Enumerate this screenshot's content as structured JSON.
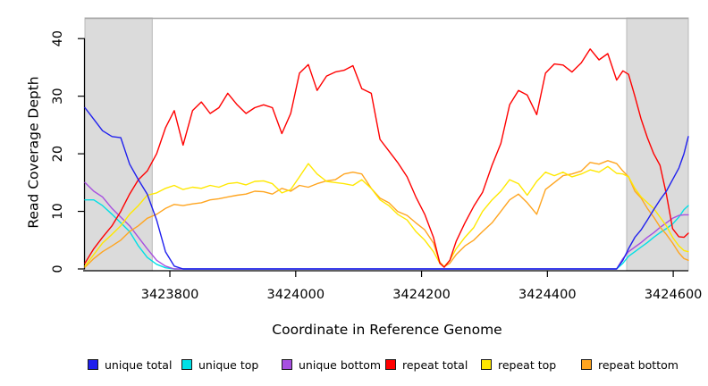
{
  "chart_data": {
    "type": "line",
    "title": "",
    "xlabel": "Coordinate in Reference Genome",
    "ylabel": "Read Coverage Depth",
    "xlim": [
      3423665,
      3424624
    ],
    "ylim": [
      0,
      43.6
    ],
    "xticks": [
      {
        "value": 3423800,
        "label": "3423800"
      },
      {
        "value": 3424000,
        "label": "3424000"
      },
      {
        "value": 3424200,
        "label": "3424200"
      },
      {
        "value": 3424400,
        "label": "3424400"
      },
      {
        "value": 3424600,
        "label": "3424600"
      }
    ],
    "yticks": [
      {
        "value": 0,
        "label": "0"
      },
      {
        "value": 10,
        "label": "10"
      },
      {
        "value": 20,
        "label": "20"
      },
      {
        "value": 30,
        "label": "30"
      },
      {
        "value": 40,
        "label": "40"
      }
    ],
    "grid": false,
    "legend_position": "bottom",
    "shade_fill": "#dbdbdb",
    "shade_border": "#b9b9b9",
    "top_rule_color": "#a6a6a6",
    "axis_color": "#000000",
    "shaded_regions": [
      {
        "x0": 3423665,
        "x1": 3423772
      },
      {
        "x0": 3424526,
        "x1": 3424624
      }
    ],
    "x": [
      3423665,
      3423679,
      3423693,
      3423708,
      3423722,
      3423736,
      3423750,
      3423764,
      3423779,
      3423793,
      3423807,
      3423821,
      3423836,
      3423850,
      3423864,
      3423878,
      3423892,
      3423907,
      3423921,
      3423935,
      3423949,
      3423963,
      3423978,
      3423992,
      3424006,
      3424020,
      3424034,
      3424049,
      3424063,
      3424077,
      3424091,
      3424105,
      3424120,
      3424134,
      3424148,
      3424162,
      3424177,
      3424191,
      3424205,
      3424219,
      3424229,
      3424236,
      3424245,
      3424255,
      3424269,
      3424283,
      3424297,
      3424312,
      3424326,
      3424340,
      3424354,
      3424368,
      3424383,
      3424397,
      3424411,
      3424425,
      3424439,
      3424454,
      3424468,
      3424482,
      3424496,
      3424510,
      3424520,
      3424529,
      3424539,
      3424549,
      3424559,
      3424569,
      3424579,
      3424589,
      3424599,
      3424609,
      3424617,
      3424624
    ],
    "series": [
      {
        "name": "unique top",
        "color": "#00e0e6",
        "values": [
          12,
          12,
          11,
          9.5,
          8,
          6.5,
          4,
          2,
          0.8,
          0.2,
          0,
          0,
          0,
          0,
          0,
          0,
          0,
          0,
          0,
          0,
          0,
          0,
          0,
          0,
          0,
          0,
          0,
          0,
          0,
          0,
          0,
          0,
          0,
          0,
          0,
          0,
          0,
          0,
          0,
          0,
          0,
          0,
          0,
          0,
          0,
          0,
          0,
          0,
          0,
          0,
          0,
          0,
          0,
          0,
          0,
          0,
          0,
          0,
          0,
          0,
          0,
          0,
          1,
          2.2,
          3,
          3.8,
          4.6,
          5.5,
          6.3,
          7,
          7.8,
          9,
          10.3,
          11
        ]
      },
      {
        "name": "unique bottom",
        "color": "#a74fe0",
        "values": [
          15,
          13.5,
          12.5,
          10.5,
          9,
          7.5,
          5.5,
          3.5,
          1.5,
          0.5,
          0,
          0,
          0,
          0,
          0,
          0,
          0,
          0,
          0,
          0,
          0,
          0,
          0,
          0,
          0,
          0,
          0,
          0,
          0,
          0,
          0,
          0,
          0,
          0,
          0,
          0,
          0,
          0,
          0,
          0,
          0,
          0,
          0,
          0,
          0,
          0,
          0,
          0,
          0,
          0,
          0,
          0,
          0,
          0,
          0,
          0,
          0,
          0,
          0,
          0,
          0,
          0,
          1.8,
          3,
          3.8,
          4.6,
          5.5,
          6.3,
          7.2,
          8,
          8.8,
          9.3,
          9.4,
          9.4
        ]
      },
      {
        "name": "repeat bottom",
        "color": "#ffa520",
        "values": [
          0.3,
          1.8,
          3,
          4,
          5,
          6.5,
          7.5,
          8.8,
          9.5,
          10.5,
          11.2,
          11,
          11.3,
          11.5,
          12,
          12.2,
          12.5,
          12.8,
          13,
          13.5,
          13.4,
          13,
          14,
          13.5,
          14.5,
          14.2,
          14.8,
          15.3,
          15.5,
          16.5,
          16.8,
          16.5,
          14,
          12.3,
          11.5,
          10,
          9.3,
          8,
          6.8,
          4.5,
          1.2,
          0.4,
          1,
          2.5,
          4,
          5,
          6.5,
          8,
          10,
          12,
          13,
          11.5,
          9.5,
          13.8,
          15,
          16.2,
          16.5,
          17,
          18.5,
          18.2,
          18.8,
          18.3,
          17,
          16,
          13.5,
          12.3,
          10.5,
          9,
          7.3,
          6,
          4.5,
          2.8,
          1.8,
          1.5
        ]
      },
      {
        "name": "repeat top",
        "color": "#ffe800",
        "values": [
          0.5,
          2.5,
          4.5,
          6,
          7.5,
          9.5,
          11,
          12.8,
          13.2,
          14,
          14.5,
          13.8,
          14.2,
          14,
          14.5,
          14.2,
          14.8,
          15,
          14.6,
          15.2,
          15.3,
          14.8,
          13.2,
          13.8,
          16,
          18.3,
          16.5,
          15.2,
          15,
          14.8,
          14.5,
          15.5,
          14,
          12,
          11,
          9.5,
          8.5,
          6.5,
          5,
          3,
          1,
          0.4,
          1.5,
          3.5,
          5.5,
          7.2,
          10,
          12,
          13.5,
          15.5,
          14.8,
          12.8,
          15.2,
          16.8,
          16.2,
          16.8,
          16,
          16.5,
          17.2,
          16.8,
          17.8,
          16.6,
          16.5,
          16,
          14,
          12.5,
          11.5,
          10.5,
          9,
          7.5,
          5.5,
          4,
          3.2,
          3
        ]
      },
      {
        "name": "repeat total",
        "color": "#ff0000",
        "values": [
          1,
          3.5,
          5.5,
          7.5,
          10,
          13,
          15.5,
          17,
          20,
          24.5,
          27.5,
          21.5,
          27.5,
          29,
          27,
          28,
          30.5,
          28.5,
          27,
          28,
          28.5,
          28,
          23.5,
          27,
          34,
          35.5,
          31,
          33.5,
          34.2,
          34.5,
          35.3,
          31.3,
          30.5,
          22.5,
          20.5,
          18.5,
          16,
          12.5,
          9.5,
          5.5,
          1,
          0.3,
          1.5,
          4.8,
          8,
          10.9,
          13.3,
          18,
          21.8,
          28.5,
          31,
          30.2,
          26.8,
          34,
          35.6,
          35.4,
          34.2,
          35.8,
          38.2,
          36.3,
          37.4,
          32.8,
          34.4,
          33.8,
          30,
          26,
          22.8,
          20,
          18,
          13,
          7,
          5.6,
          5.5,
          6.2
        ]
      },
      {
        "name": "unique total",
        "color": "#2020ee",
        "values": [
          28,
          26,
          24,
          23,
          22.8,
          18.2,
          15.5,
          13,
          8.5,
          3,
          0.5,
          0,
          0,
          0,
          0,
          0,
          0,
          0,
          0,
          0,
          0,
          0,
          0,
          0,
          0,
          0,
          0,
          0,
          0,
          0,
          0,
          0,
          0,
          0,
          0,
          0,
          0,
          0,
          0,
          0,
          0,
          0,
          0,
          0,
          0,
          0,
          0,
          0,
          0,
          0,
          0,
          0,
          0,
          0,
          0,
          0,
          0,
          0,
          0,
          0,
          0,
          0,
          1.5,
          3.5,
          5.5,
          6.8,
          8.5,
          10.3,
          12,
          13.5,
          15.5,
          17.5,
          20,
          23
        ]
      }
    ],
    "legend": [
      {
        "label": "unique total",
        "color": "#2020ee"
      },
      {
        "label": "unique top",
        "color": "#00e0e6"
      },
      {
        "label": "unique bottom",
        "color": "#a74fe0"
      },
      {
        "label": "repeat total",
        "color": "#ff0000"
      },
      {
        "label": "repeat top",
        "color": "#ffe800"
      },
      {
        "label": "repeat bottom",
        "color": "#ffa520"
      }
    ]
  },
  "layout_note": ""
}
